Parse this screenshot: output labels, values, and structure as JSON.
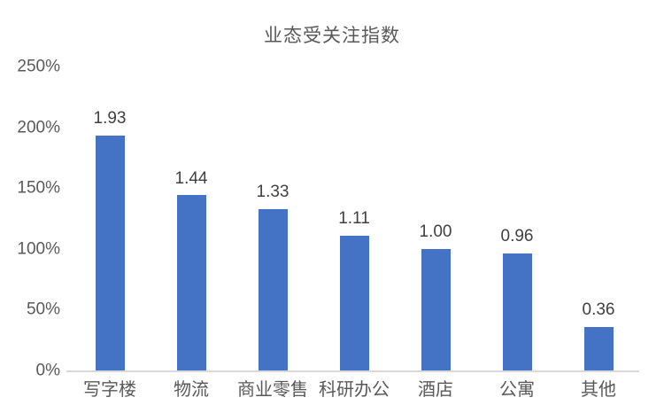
{
  "chart_data": {
    "type": "bar",
    "title": "业态受关注指数",
    "categories": [
      "写字楼",
      "物流",
      "商业零售",
      "科研办公",
      "酒店",
      "公寓",
      "其他"
    ],
    "values": [
      1.93,
      1.44,
      1.33,
      1.11,
      1.0,
      0.96,
      0.36
    ],
    "value_labels": [
      "1.93",
      "1.44",
      "1.33",
      "1.11",
      "1.00",
      "0.96",
      "0.36"
    ],
    "series": [
      {
        "name": "业态受关注指数",
        "values": [
          1.93,
          1.44,
          1.33,
          1.11,
          1.0,
          0.96,
          0.36
        ]
      }
    ],
    "y_ticks": [
      {
        "value": 0,
        "label": "0%"
      },
      {
        "value": 0.5,
        "label": "50%"
      },
      {
        "value": 1.0,
        "label": "100%"
      },
      {
        "value": 1.5,
        "label": "150%"
      },
      {
        "value": 2.0,
        "label": "200%"
      },
      {
        "value": 2.5,
        "label": "250%"
      }
    ],
    "ylim": [
      0,
      2.5
    ],
    "xlabel": "",
    "ylabel": "",
    "grid": false,
    "legend": "none",
    "colors": {
      "bar": "#4472C4",
      "axis_line": "#D9D9D9",
      "title_text": "#595959",
      "value_label_text": "#404040",
      "tick_text": "#595959",
      "background": "#FFFFFF"
    }
  }
}
